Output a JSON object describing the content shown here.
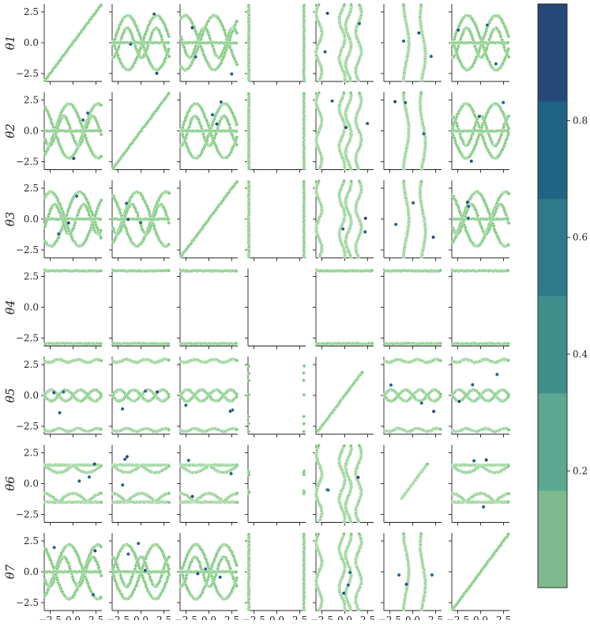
{
  "chart_data": {
    "type": "scatter",
    "layout": "pair-plot",
    "variables": [
      "θ1",
      "θ2",
      "θ3",
      "θ4",
      "θ5",
      "θ6",
      "θ7"
    ],
    "xlim": [
      -3.14,
      3.14
    ],
    "ylim": [
      -3.14,
      3.14
    ],
    "x_ticks": [
      -2.5,
      0.0,
      2.5
    ],
    "x_tick_labels": [
      "−2.5",
      "0.0",
      "2.5"
    ],
    "y_ticks": [
      -2.5,
      0.0,
      2.5
    ],
    "y_tick_labels": [
      "−2.5",
      "0.0",
      "2.5"
    ],
    "colorbar": {
      "ticks": [
        0.2,
        0.4,
        0.6,
        0.8
      ],
      "tick_labels": [
        "0.2",
        "0.4",
        "0.6",
        "0.8"
      ],
      "range": [
        0.0,
        1.0
      ],
      "levels": [
        "#7dbb8f",
        "#5ba78f",
        "#3e8f8c",
        "#2e7a8a",
        "#1f6485",
        "#264878"
      ]
    },
    "point_color_light": "#7fc97f",
    "point_color_dark": "#264878"
  }
}
